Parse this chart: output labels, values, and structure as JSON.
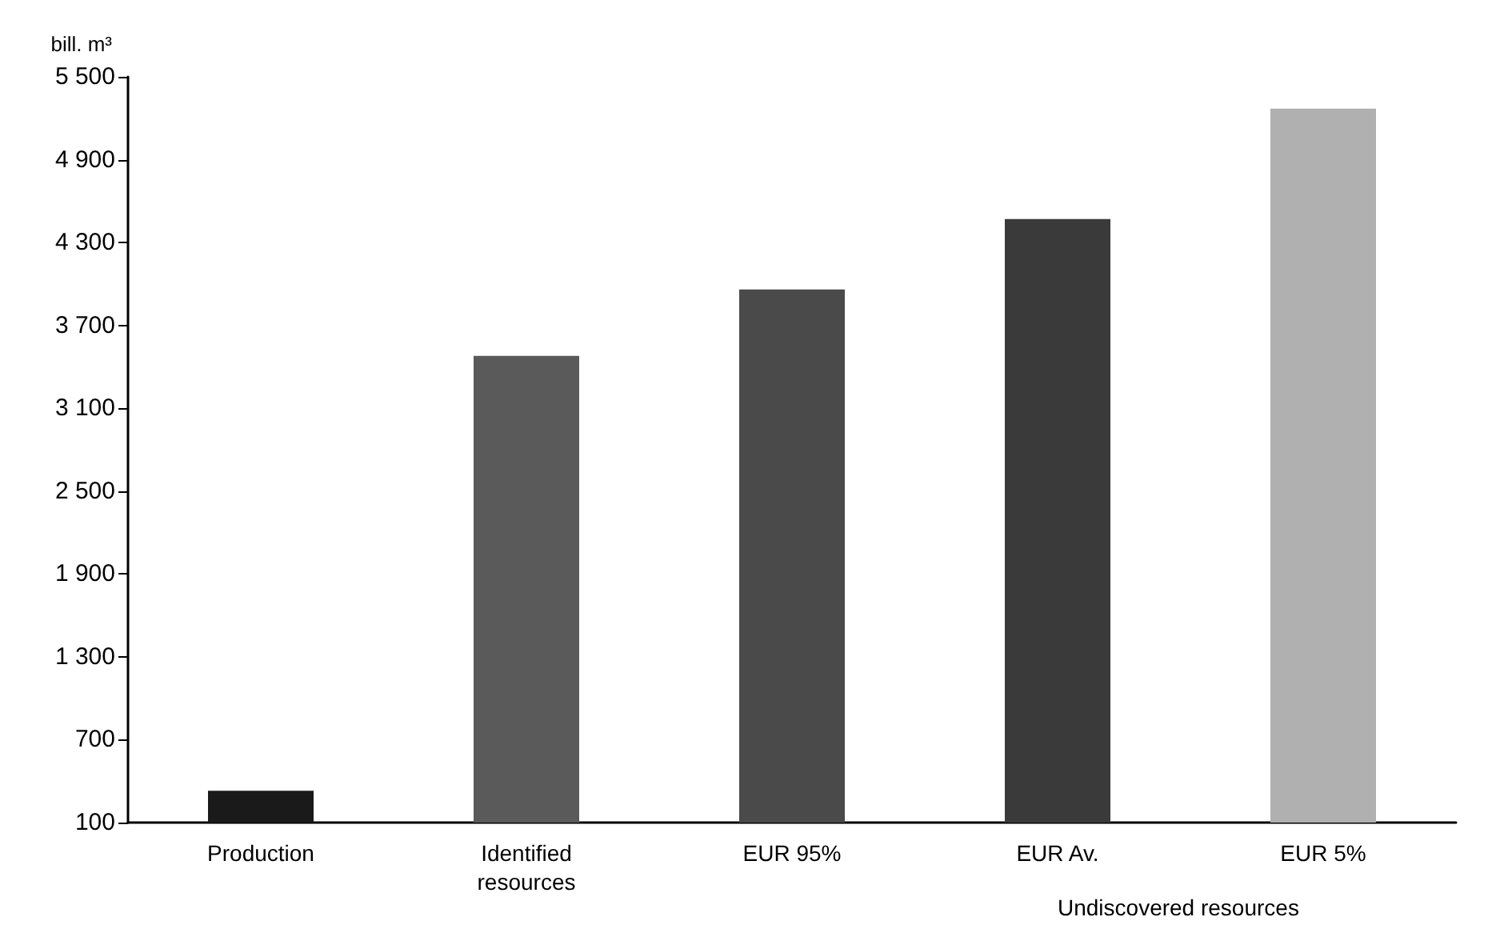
{
  "chart_data": {
    "type": "bar",
    "ylabel": "bill. m³",
    "categories": [
      "Production",
      "Identified resources",
      "EUR 95%",
      "EUR Av.",
      "EUR 5%"
    ],
    "values": [
      330,
      3480,
      3960,
      4470,
      5270
    ],
    "colors": [
      "#1a1a1a",
      "#5a5a5a",
      "#4a4a4a",
      "#3a3a3a",
      "#b0b0b0"
    ],
    "ylim": [
      100,
      5500
    ],
    "yticks": [
      {
        "value": 100,
        "label": "100"
      },
      {
        "value": 700,
        "label": "700"
      },
      {
        "value": 1300,
        "label": "1 300"
      },
      {
        "value": 1900,
        "label": "1 900"
      },
      {
        "value": 2500,
        "label": "2 500"
      },
      {
        "value": 3100,
        "label": "3 100"
      },
      {
        "value": 3700,
        "label": "3 700"
      },
      {
        "value": 4300,
        "label": "4 300"
      },
      {
        "value": 4900,
        "label": "4 900"
      },
      {
        "value": 5500,
        "label": "5 500"
      }
    ],
    "annotations": [
      "Undiscovered resources"
    ],
    "grid": false
  }
}
